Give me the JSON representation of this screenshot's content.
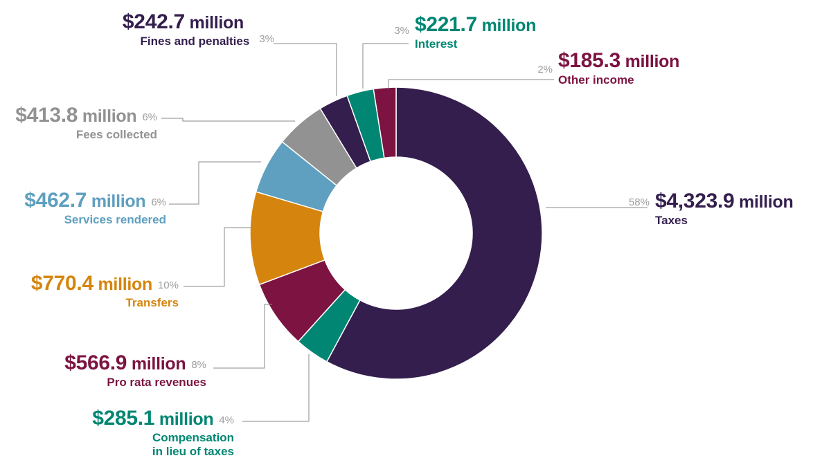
{
  "chart_data": {
    "type": "pie",
    "donut": true,
    "currency": "$",
    "unit": "million",
    "slices": [
      {
        "name": "Taxes",
        "value": 4323.9,
        "value_label": "$4,323.9",
        "percent_label": "58%",
        "category_lines": [
          "Taxes"
        ],
        "color": "#331e4d"
      },
      {
        "name": "Compensation in lieu of taxes",
        "value": 285.1,
        "value_label": "$285.1",
        "percent_label": "4%",
        "category_lines": [
          "Compensation",
          "in lieu of taxes"
        ],
        "color": "#008672"
      },
      {
        "name": "Pro rata revenues",
        "value": 566.9,
        "value_label": "$566.9",
        "percent_label": "8%",
        "category_lines": [
          "Pro rata revenues"
        ],
        "color": "#7c1341"
      },
      {
        "name": "Transfers",
        "value": 770.4,
        "value_label": "$770.4",
        "percent_label": "10%",
        "category_lines": [
          "Transfers"
        ],
        "color": "#d5850e"
      },
      {
        "name": "Services rendered",
        "value": 462.7,
        "value_label": "$462.7",
        "percent_label": "6%",
        "category_lines": [
          "Services rendered"
        ],
        "color": "#5f9fbf"
      },
      {
        "name": "Fees collected",
        "value": 413.8,
        "value_label": "$413.8",
        "percent_label": "6%",
        "category_lines": [
          "Fees collected"
        ],
        "color": "#929292"
      },
      {
        "name": "Fines and penalties",
        "value": 242.7,
        "value_label": "$242.7",
        "percent_label": "3%",
        "category_lines": [
          "Fines and penalties"
        ],
        "color": "#331e4d"
      },
      {
        "name": "Interest",
        "value": 221.7,
        "value_label": "$221.7",
        "percent_label": "3%",
        "category_lines": [
          "Interest"
        ],
        "color": "#008672"
      },
      {
        "name": "Other income",
        "value": 185.3,
        "value_label": "$185.3",
        "percent_label": "2%",
        "category_lines": [
          "Other income"
        ],
        "color": "#7c1341"
      }
    ]
  }
}
